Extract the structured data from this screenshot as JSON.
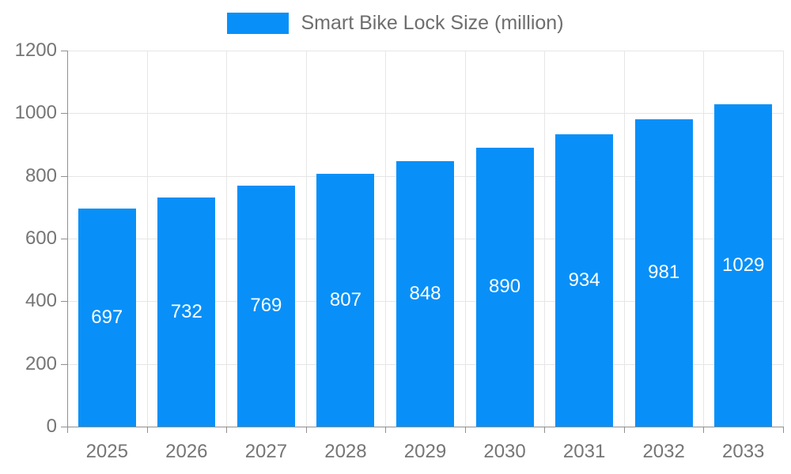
{
  "chart_data": {
    "type": "bar",
    "title": "Smart Bike Lock Size (million)",
    "categories": [
      "2025",
      "2026",
      "2027",
      "2028",
      "2029",
      "2030",
      "2031",
      "2032",
      "2033"
    ],
    "values": [
      697,
      732,
      769,
      807,
      848,
      890,
      934,
      981,
      1029
    ],
    "xlabel": "",
    "ylabel": "",
    "ylim": [
      0,
      1200
    ],
    "yticks": [
      0,
      200,
      400,
      600,
      800,
      1000,
      1200
    ],
    "grid": true,
    "legend_position": "top-center",
    "bar_color": "#0890F8",
    "value_label_color": "#ffffff",
    "axis_color": "#909090",
    "grid_color": "#e6e6e6",
    "tick_label_color": "#757575",
    "legend_text_color": "#6e6e6e",
    "background_color": "#ffffff"
  }
}
